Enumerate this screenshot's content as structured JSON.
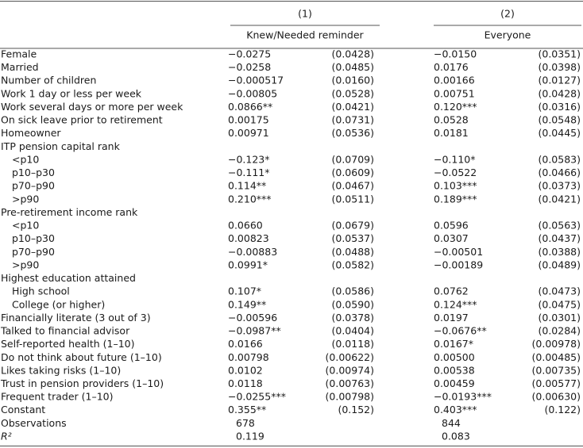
{
  "columns": [
    {
      "number": "(1)",
      "label": "Knew/Needed reminder"
    },
    {
      "number": "(2)",
      "label": "Everyone"
    }
  ],
  "rows": [
    {
      "label": "Female",
      "values": [
        "−0.0275",
        "(0.0428)",
        "−0.0150",
        "(0.0351)"
      ]
    },
    {
      "label": "Married",
      "values": [
        "−0.0258",
        "(0.0485)",
        "0.0176",
        "(0.0398)"
      ]
    },
    {
      "label": "Number of children",
      "values": [
        "−0.000517",
        "(0.0160)",
        "0.00166",
        "(0.0127)"
      ]
    },
    {
      "label": "Work 1 day or less per week",
      "values": [
        "−0.00805",
        "(0.0528)",
        "0.00751",
        "(0.0428)"
      ]
    },
    {
      "label": "Work several days or more per week",
      "values": [
        "0.0866**",
        "(0.0421)",
        "0.120***",
        "(0.0316)"
      ]
    },
    {
      "label": "On sick leave prior to retirement",
      "values": [
        "0.00175",
        "(0.0731)",
        "0.0528",
        "(0.0548)"
      ]
    },
    {
      "label": "Homeowner",
      "values": [
        "0.00971",
        "(0.0536)",
        "0.0181",
        "(0.0445)"
      ]
    },
    {
      "label": "ITP pension capital rank",
      "rows": [
        {
          "label": "<p10",
          "values": [
            "−0.123*",
            "(0.0709)",
            "−0.110*",
            "(0.0583)"
          ]
        },
        {
          "label": "p10–p30",
          "values": [
            "−0.111*",
            "(0.0609)",
            "−0.0522",
            "(0.0466)"
          ]
        },
        {
          "label": "p70–p90",
          "values": [
            "0.114**",
            "(0.0467)",
            "0.103***",
            "(0.0373)"
          ]
        },
        {
          "label": ">p90",
          "values": [
            "0.210***",
            "(0.0511)",
            "0.189***",
            "(0.0421)"
          ]
        }
      ]
    },
    {
      "label": "Pre-retirement income rank",
      "rows": [
        {
          "label": "<p10",
          "values": [
            "0.0660",
            "(0.0679)",
            "0.0596",
            "(0.0563)"
          ]
        },
        {
          "label": "p10–p30",
          "values": [
            "0.00823",
            "(0.0537)",
            "0.0307",
            "(0.0437)"
          ]
        },
        {
          "label": "p70–p90",
          "values": [
            "−0.00883",
            "(0.0488)",
            "−0.00501",
            "(0.0388)"
          ]
        },
        {
          "label": ">p90",
          "values": [
            "0.0991*",
            "(0.0582)",
            "−0.00189",
            "(0.0489)"
          ]
        }
      ]
    },
    {
      "label": "Highest education attained",
      "rows": [
        {
          "label": "High school",
          "values": [
            "0.107*",
            "(0.0586)",
            "0.0762",
            "(0.0473)"
          ]
        },
        {
          "label": "College (or higher)",
          "values": [
            "0.149**",
            "(0.0590)",
            "0.124***",
            "(0.0475)"
          ]
        }
      ]
    },
    {
      "label": "Financially literate (3 out of 3)",
      "values": [
        "−0.00596",
        "(0.0378)",
        "0.0197",
        "(0.0301)"
      ]
    },
    {
      "label": "Talked to financial advisor",
      "values": [
        "−0.0987**",
        "(0.0404)",
        "−0.0676**",
        "(0.0284)"
      ]
    },
    {
      "label": "Self-reported health (1–10)",
      "values": [
        "0.0166",
        "(0.0118)",
        "0.0167*",
        "(0.00978)"
      ]
    },
    {
      "label": "Do not think about future (1–10)",
      "values": [
        "0.00798",
        "(0.00622)",
        "0.00500",
        "(0.00485)"
      ]
    },
    {
      "label": "Likes taking risks (1–10)",
      "values": [
        "0.0102",
        "(0.00974)",
        "0.00538",
        "(0.00735)"
      ]
    },
    {
      "label": "Trust in pension providers (1–10)",
      "values": [
        "0.0118",
        "(0.00763)",
        "0.00459",
        "(0.00577)"
      ]
    },
    {
      "label": "Frequent trader (1–10)",
      "values": [
        "−0.0255***",
        "(0.00798)",
        "−0.0193***",
        "(0.00630)"
      ]
    },
    {
      "label": "Constant",
      "values": [
        "0.355**",
        "(0.152)",
        "0.403***",
        "(0.122)"
      ]
    },
    {
      "label": "Observations",
      "values": [
        "678",
        "844"
      ]
    },
    {
      "label": "R²",
      "values": [
        "0.119",
        "0.083"
      ]
    }
  ]
}
